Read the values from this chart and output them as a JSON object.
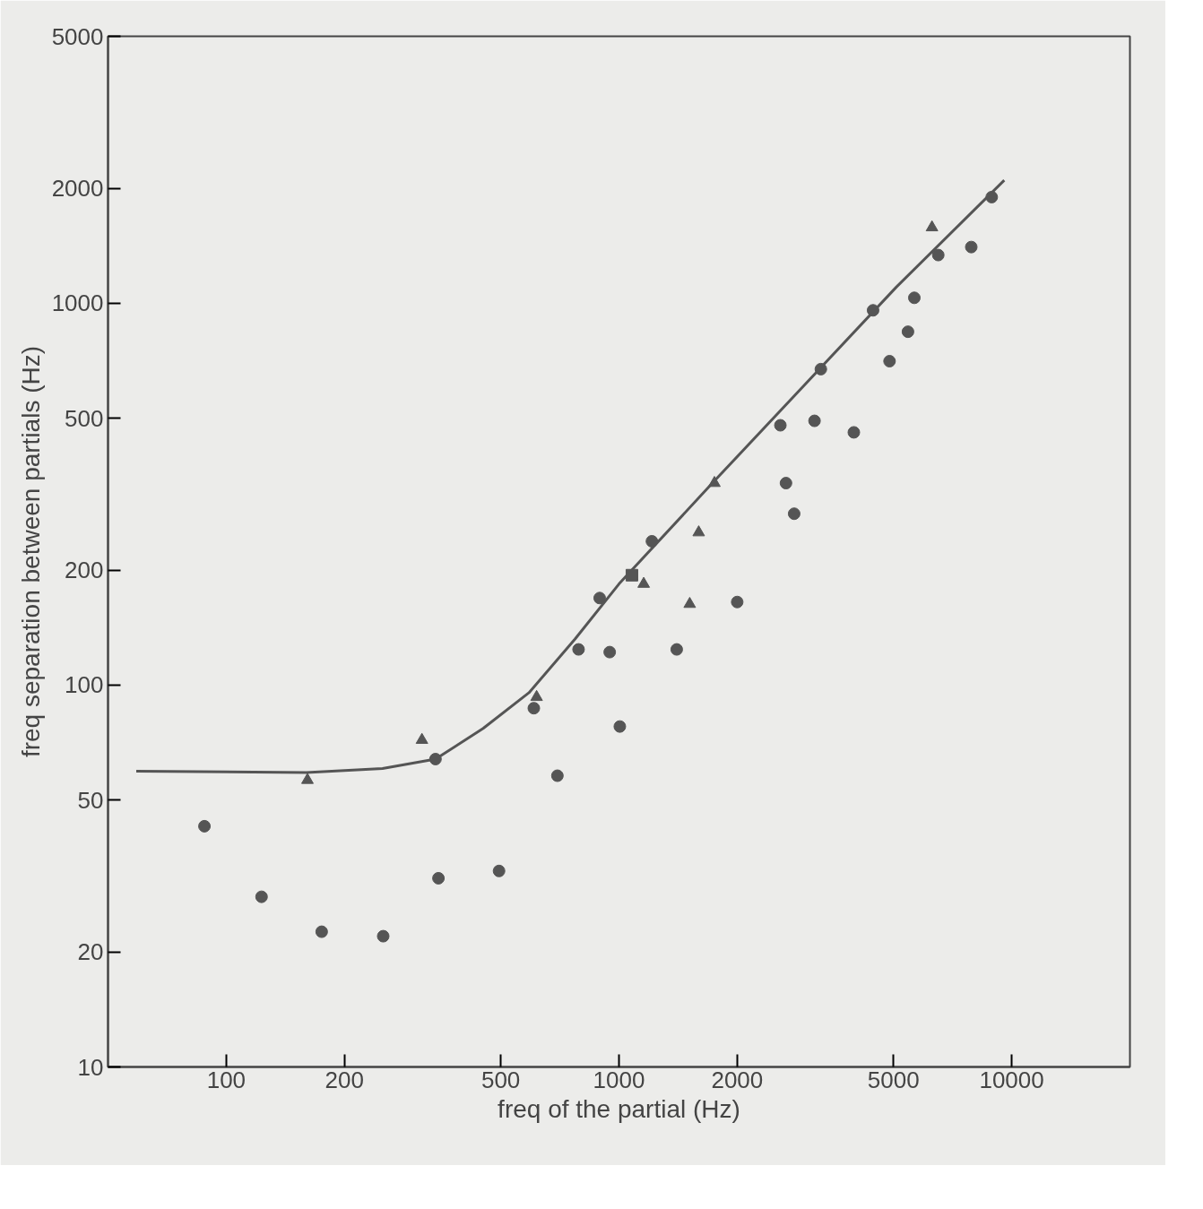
{
  "chart_data": {
    "type": "scatter",
    "xlabel": "freq of the partial (Hz)",
    "ylabel": "freq separation between partials (Hz)",
    "log": "xy",
    "grid": false,
    "xlim": [
      50,
      20000
    ],
    "ylim": [
      10,
      5000
    ],
    "xticks": [
      100,
      200,
      500,
      1000,
      2000,
      5000,
      10000
    ],
    "yticks": [
      10,
      20,
      50,
      100,
      200,
      500,
      1000,
      2000,
      5000
    ],
    "series": [
      {
        "type": "line",
        "color": "#555555",
        "line_style": "solid",
        "x": [
          59,
          160,
          250,
          341,
          451,
          590,
          773,
          1000,
          1729,
          2965,
          5082,
          9572
        ],
        "values": [
          59.5,
          59,
          60.5,
          64,
          77,
          95.5,
          132,
          184,
          338,
          610,
          1102,
          2099
        ]
      },
      {
        "color": "#555555",
        "marker": "circle",
        "x": [
          341,
          607,
          789,
          893,
          1213,
          2576,
          3266,
          4436,
          6501,
          8894
        ],
        "values": [
          64,
          87,
          124,
          169,
          238,
          479,
          672,
          958,
          1337,
          1896
        ]
      },
      {
        "color": "#555555",
        "marker": "square",
        "x": [
          1079
        ],
        "values": [
          194
        ]
      },
      {
        "color": "#555555",
        "marker": "circle",
        "x": [
          88,
          123,
          175,
          251,
          347,
          495,
          697,
          1005,
          947,
          1403,
          2000,
          2662,
          2793,
          3147,
          3963,
          4886,
          5443,
          5650,
          7889
        ],
        "values": [
          42.7,
          27.9,
          22.6,
          22,
          31.2,
          32.6,
          57.9,
          77.9,
          122,
          124,
          165,
          338,
          281,
          492,
          459,
          705,
          842,
          1033,
          1403
        ]
      },
      {
        "color": "#555555",
        "marker": "triangle",
        "x": [
          161,
          315,
          617,
          1156,
          1514,
          1596,
          1750,
          6266
        ],
        "values": [
          56.4,
          71.8,
          93,
          184,
          163,
          251,
          338,
          1579
        ]
      }
    ]
  }
}
